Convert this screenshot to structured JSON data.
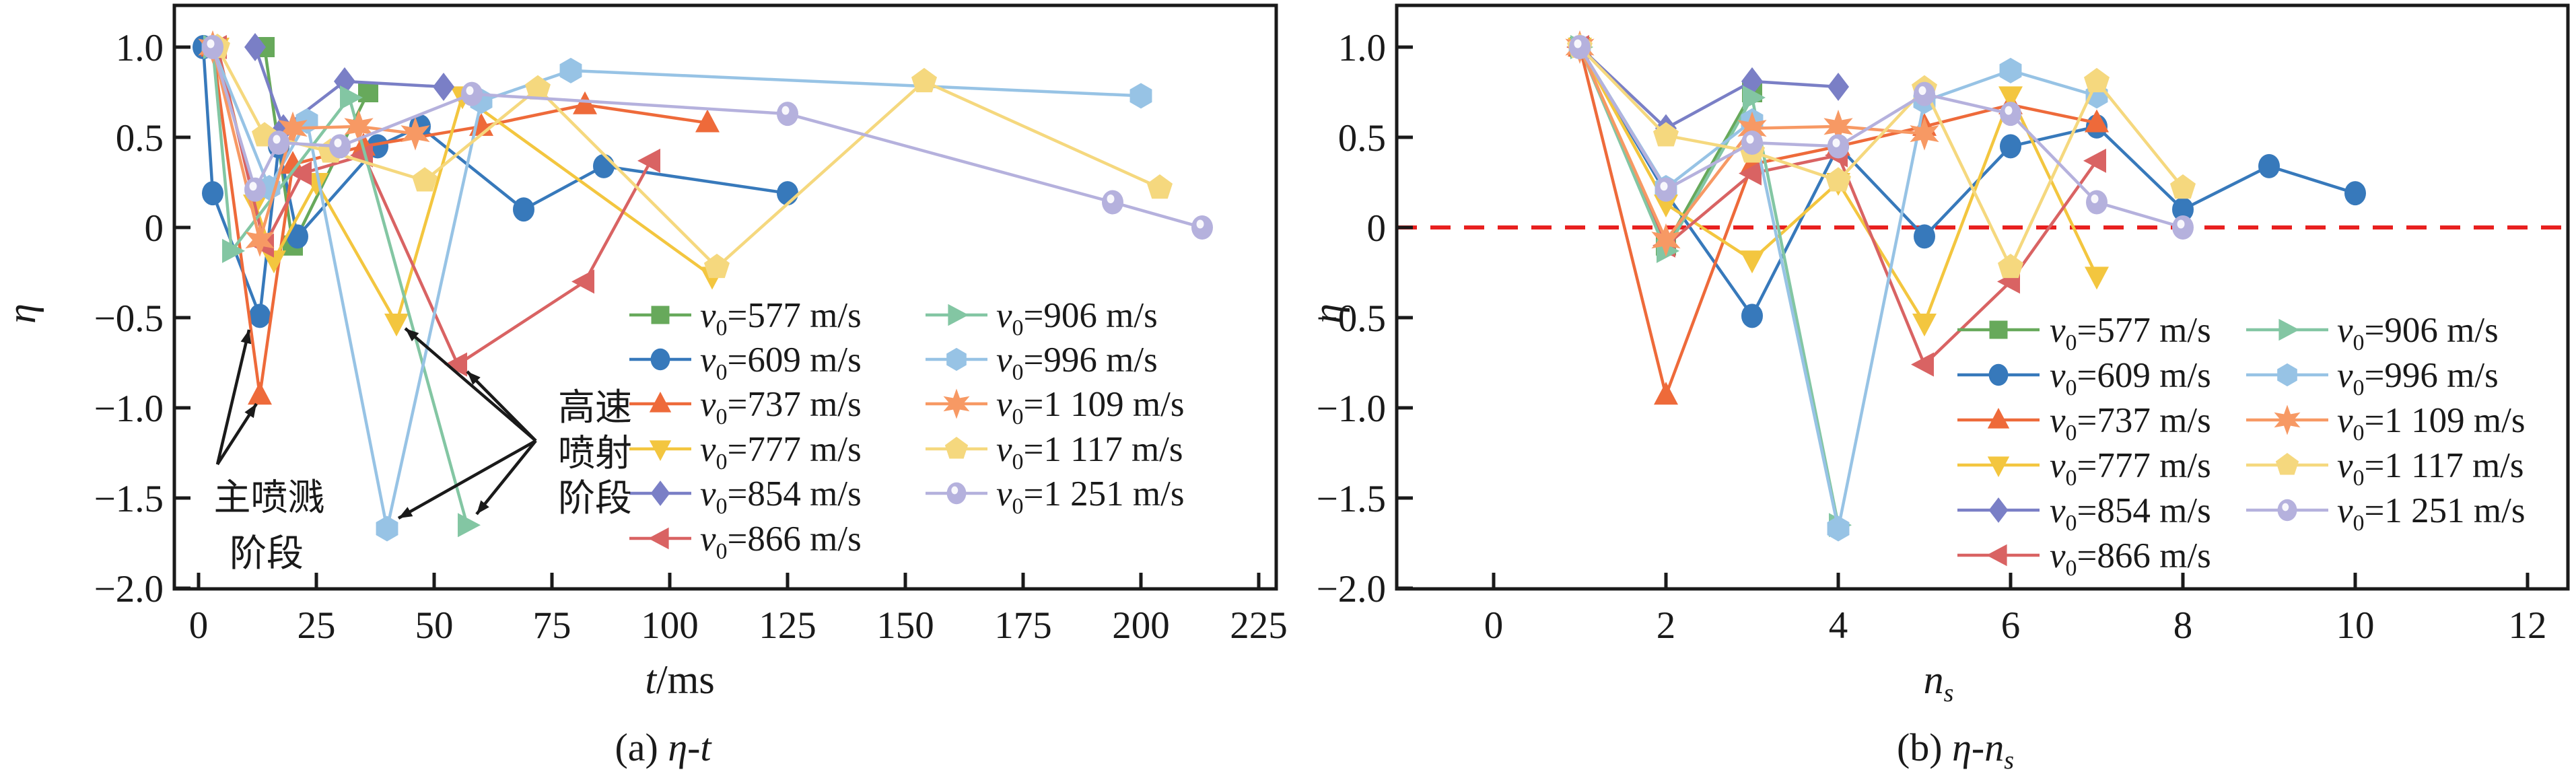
{
  "figure": {
    "background": "#ffffff",
    "axis_color": "#1a1a1a",
    "zero_line_color": "#e8201f"
  },
  "panels": {
    "a": {
      "caption_prefix": "(a) ",
      "caption_main": "η-t",
      "ylabel": "η",
      "xlabel_italic": "t",
      "xlabel_rest": "/ms"
    },
    "b": {
      "caption_prefix": "(b) ",
      "caption_main": "η-n",
      "caption_sub": "s",
      "ylabel": "η",
      "xlabel_italic": "n",
      "xlabel_sub": "s"
    }
  },
  "annotations": {
    "main_splash": {
      "lines": [
        "主喷溅",
        "阶段"
      ]
    },
    "high_speed_jet": {
      "lines": [
        "高速",
        "喷射",
        "阶段"
      ]
    }
  },
  "legend": {
    "var_letter": "v",
    "var_sub": "0",
    "unit": "m/s",
    "items": [
      {
        "value": "577"
      },
      {
        "value": "609"
      },
      {
        "value": "737"
      },
      {
        "value": "777"
      },
      {
        "value": "854"
      },
      {
        "value": "866"
      },
      {
        "value": "906"
      },
      {
        "value": "996"
      },
      {
        "value": "1 109"
      },
      {
        "value": "1 117"
      },
      {
        "value": "1 251"
      }
    ]
  },
  "chart_data": [
    {
      "id": "a",
      "type": "line",
      "title": "(a) η-t",
      "xlabel": "t/ms",
      "ylabel": "η",
      "xlim": [
        -5,
        229
      ],
      "ylim": [
        -2.0,
        1.23
      ],
      "grid": false,
      "legend_position": "inside center-right, two columns",
      "x_ticks": [
        0,
        25,
        50,
        75,
        100,
        125,
        150,
        175,
        200,
        225
      ],
      "y_ticks": [
        {
          "v": 1.0,
          "label": "1.0"
        },
        {
          "v": 0.5,
          "label": "0.5"
        },
        {
          "v": 0.0,
          "label": "0"
        },
        {
          "v": -0.5,
          "label": "−0.5"
        },
        {
          "v": -1.0,
          "label": "−1.0"
        },
        {
          "v": -1.5,
          "label": "−1.5"
        },
        {
          "v": -2.0,
          "label": "−2.0"
        }
      ],
      "series": [
        {
          "name": "v0=577 m/s",
          "marker": "square",
          "color": "#67a95b",
          "x": [
            14,
            20,
            36
          ],
          "y": [
            1.0,
            -0.1,
            0.75
          ]
        },
        {
          "name": "v0=609 m/s",
          "marker": "circle",
          "color": "#3779bb",
          "x": [
            1,
            3,
            13,
            17,
            21,
            38,
            47,
            69,
            86,
            125
          ],
          "y": [
            1.0,
            0.19,
            -0.49,
            0.45,
            -0.05,
            0.45,
            0.56,
            0.1,
            0.34,
            0.19
          ]
        },
        {
          "name": "v0=737 m/s",
          "marker": "triangle-up",
          "color": "#ee6a3a",
          "x": [
            3,
            13,
            20,
            35,
            60,
            82,
            108
          ],
          "y": [
            1.0,
            -0.93,
            0.35,
            0.45,
            0.56,
            0.68,
            0.58
          ]
        },
        {
          "name": "v0=777 m/s",
          "marker": "triangle-down",
          "color": "#f3c63f",
          "x": [
            4,
            12,
            16,
            25,
            42,
            56,
            109
          ],
          "y": [
            1.0,
            0.13,
            -0.18,
            0.25,
            -0.53,
            0.73,
            -0.27
          ]
        },
        {
          "name": "v0=854 m/s",
          "marker": "diamond",
          "color": "#7a7fc6",
          "x": [
            12,
            18,
            31,
            52
          ],
          "y": [
            1.0,
            0.55,
            0.81,
            0.78
          ]
        },
        {
          "name": "v0=866 m/s",
          "marker": "triangle-left",
          "color": "#d96363",
          "x": [
            4,
            14,
            22,
            35,
            55,
            82,
            96
          ],
          "y": [
            1.0,
            -0.1,
            0.3,
            0.4,
            -0.76,
            -0.3,
            0.37
          ]
        },
        {
          "name": "v0=906 m/s",
          "marker": "triangle-right",
          "color": "#83c6a3",
          "x": [
            3,
            7,
            32,
            57
          ],
          "y": [
            1.0,
            -0.13,
            0.72,
            -1.65
          ]
        },
        {
          "name": "v0=996 m/s",
          "marker": "hexagon",
          "color": "#97c3e5",
          "x": [
            3,
            15,
            23,
            40,
            60,
            79,
            200
          ],
          "y": [
            1.0,
            0.22,
            0.59,
            -1.67,
            0.7,
            0.87,
            0.73
          ]
        },
        {
          "name": "v0=1 109 m/s",
          "marker": "star6",
          "color": "#f79964",
          "x": [
            3,
            13,
            20,
            34,
            46
          ],
          "y": [
            1.0,
            -0.07,
            0.55,
            0.56,
            0.52
          ]
        },
        {
          "name": "v0=1 117 m/s",
          "marker": "pentagon",
          "color": "#f5d87e",
          "x": [
            4,
            14,
            28,
            48,
            72,
            110,
            154,
            204
          ],
          "y": [
            1.0,
            0.51,
            0.42,
            0.26,
            0.77,
            -0.22,
            0.81,
            0.22
          ]
        },
        {
          "name": "v0=1 251 m/s",
          "marker": "circle-dot",
          "color": "#b5b1dd",
          "x": [
            3,
            12,
            17,
            30,
            58,
            125,
            194,
            213
          ],
          "y": [
            1.0,
            0.21,
            0.47,
            0.45,
            0.74,
            0.63,
            0.14,
            0.0
          ]
        }
      ]
    },
    {
      "id": "b",
      "type": "line",
      "title": "(b) η-n_s",
      "xlabel": "n_s",
      "ylabel": "η",
      "xlim": [
        0,
        12.5
      ],
      "ylim": [
        -2.0,
        1.23
      ],
      "grid": false,
      "zero_line": {
        "y": 0,
        "color": "#e8201f",
        "style": "dashed"
      },
      "legend_position": "inside lower-right, two columns",
      "x_ticks": [
        0,
        2,
        4,
        6,
        8,
        10,
        12
      ],
      "y_ticks": [
        {
          "v": 1.0,
          "label": "1.0"
        },
        {
          "v": 0.5,
          "label": "0.5"
        },
        {
          "v": 0.0,
          "label": "0"
        },
        {
          "v": -0.5,
          "label": "−0.5"
        },
        {
          "v": -1.0,
          "label": "−1.0"
        },
        {
          "v": -1.5,
          "label": "−1.5"
        },
        {
          "v": -2.0,
          "label": "−2.0"
        }
      ],
      "series": [
        {
          "name": "v0=577 m/s",
          "marker": "square",
          "color": "#67a95b",
          "x": [
            1,
            2,
            3
          ],
          "y": [
            1.0,
            -0.1,
            0.75
          ]
        },
        {
          "name": "v0=609 m/s",
          "marker": "circle",
          "color": "#3779bb",
          "x": [
            1,
            2,
            3,
            4,
            5,
            6,
            7,
            8,
            9,
            10
          ],
          "y": [
            1.0,
            0.19,
            -0.49,
            0.45,
            -0.05,
            0.45,
            0.56,
            0.1,
            0.34,
            0.19
          ]
        },
        {
          "name": "v0=737 m/s",
          "marker": "triangle-up",
          "color": "#ee6a3a",
          "x": [
            1,
            2,
            3,
            4,
            5,
            6,
            7
          ],
          "y": [
            1.0,
            -0.93,
            0.35,
            0.45,
            0.56,
            0.68,
            0.58
          ]
        },
        {
          "name": "v0=777 m/s",
          "marker": "triangle-down",
          "color": "#f3c63f",
          "x": [
            1,
            2,
            3,
            4,
            5,
            6,
            7
          ],
          "y": [
            1.0,
            0.13,
            -0.18,
            0.25,
            -0.53,
            0.73,
            -0.27
          ]
        },
        {
          "name": "v0=854 m/s",
          "marker": "diamond",
          "color": "#7a7fc6",
          "x": [
            1,
            2,
            3,
            4
          ],
          "y": [
            1.0,
            0.55,
            0.81,
            0.78
          ]
        },
        {
          "name": "v0=866 m/s",
          "marker": "triangle-left",
          "color": "#d96363",
          "x": [
            1,
            2,
            3,
            4,
            5,
            6,
            7
          ],
          "y": [
            1.0,
            -0.1,
            0.3,
            0.4,
            -0.76,
            -0.3,
            0.37
          ]
        },
        {
          "name": "v0=906 m/s",
          "marker": "triangle-right",
          "color": "#83c6a3",
          "x": [
            1,
            2,
            3,
            4
          ],
          "y": [
            1.0,
            -0.13,
            0.72,
            -1.65
          ]
        },
        {
          "name": "v0=996 m/s",
          "marker": "hexagon",
          "color": "#97c3e5",
          "x": [
            1,
            2,
            3,
            4,
            5,
            6,
            7
          ],
          "y": [
            1.0,
            0.22,
            0.59,
            -1.67,
            0.7,
            0.87,
            0.73
          ]
        },
        {
          "name": "v0=1 109 m/s",
          "marker": "star6",
          "color": "#f79964",
          "x": [
            1,
            2,
            3,
            4,
            5
          ],
          "y": [
            1.0,
            -0.07,
            0.55,
            0.56,
            0.52
          ]
        },
        {
          "name": "v0=1 117 m/s",
          "marker": "pentagon",
          "color": "#f5d87e",
          "x": [
            1,
            2,
            3,
            4,
            5,
            6,
            7,
            8
          ],
          "y": [
            1.0,
            0.51,
            0.42,
            0.26,
            0.77,
            -0.22,
            0.81,
            0.22
          ]
        },
        {
          "name": "v0=1 251 m/s",
          "marker": "circle-dot",
          "color": "#b5b1dd",
          "x": [
            1,
            2,
            3,
            4,
            5,
            6,
            7,
            8
          ],
          "y": [
            1.0,
            0.21,
            0.47,
            0.45,
            0.74,
            0.63,
            0.14,
            0.0
          ]
        }
      ]
    }
  ]
}
